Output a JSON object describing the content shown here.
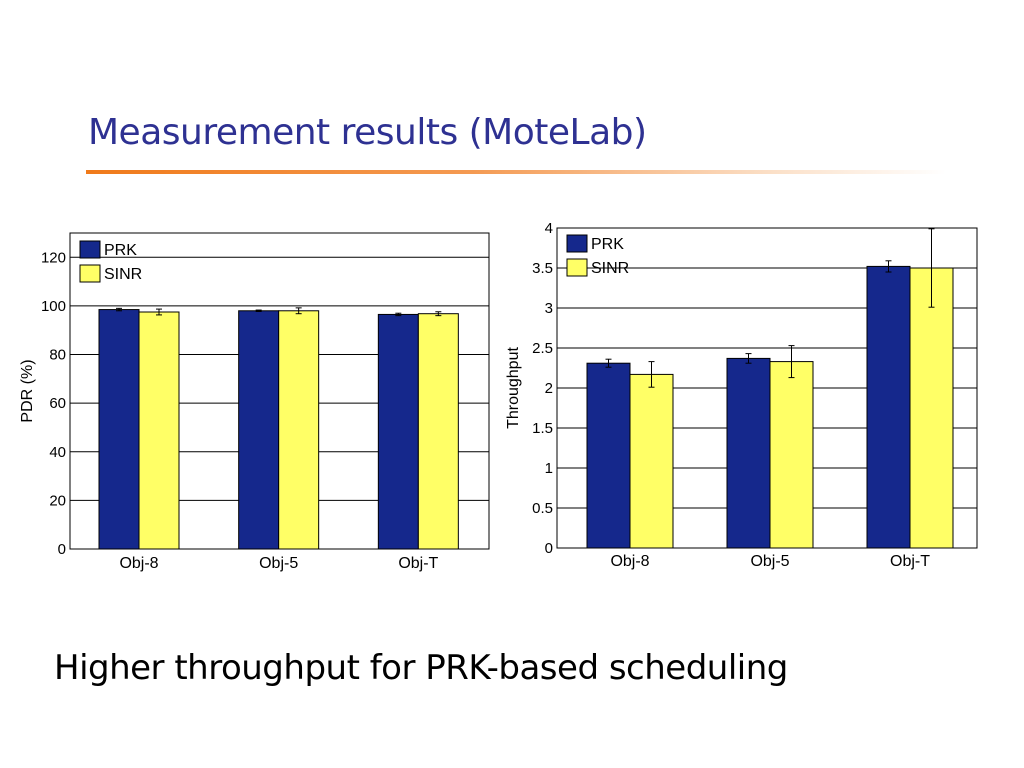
{
  "slide": {
    "title": "Measurement results (MoteLab)",
    "caption": "Higher throughput for PRK-based scheduling",
    "title_color": "#2e3192",
    "rule_color": "#f07a1a"
  },
  "chart_data": [
    {
      "type": "bar",
      "categories": [
        "Obj-8",
        "Obj-5",
        "Obj-T"
      ],
      "series": [
        {
          "name": "PRK",
          "color": "#15288c",
          "values": [
            98.5,
            98.0,
            96.5
          ],
          "errors": [
            0.5,
            0.3,
            0.5
          ]
        },
        {
          "name": "SINR",
          "color": "#ffff66",
          "values": [
            97.5,
            98.0,
            96.8
          ],
          "errors": [
            1.2,
            1.2,
            0.8
          ]
        }
      ],
      "title": "",
      "xlabel": "",
      "ylabel": "PDR (%)",
      "ylim": [
        0,
        130
      ],
      "yticks": [
        0,
        20,
        40,
        60,
        80,
        100,
        120
      ],
      "ytick_labels": [
        "0",
        "20",
        "40",
        "60",
        "80",
        "100",
        "120"
      ],
      "grid": true,
      "legend": "top-left"
    },
    {
      "type": "bar",
      "categories": [
        "Obj-8",
        "Obj-5",
        "Obj-T"
      ],
      "series": [
        {
          "name": "PRK",
          "color": "#15288c",
          "values": [
            2.31,
            2.37,
            3.52
          ],
          "errors": [
            0.05,
            0.06,
            0.07
          ]
        },
        {
          "name": "SINR",
          "color": "#ffff66",
          "values": [
            2.17,
            2.33,
            3.5
          ],
          "errors": [
            0.16,
            0.2,
            0.49
          ]
        }
      ],
      "title": "",
      "xlabel": "",
      "ylabel": "Throughput",
      "ylim": [
        0,
        4
      ],
      "yticks": [
        0,
        0.5,
        1,
        1.5,
        2,
        2.5,
        3,
        3.5,
        4
      ],
      "ytick_labels": [
        "0",
        "0.5",
        "1",
        "1.5",
        "2",
        "2.5",
        "3",
        "3.5",
        "4"
      ],
      "grid": true,
      "legend": "top-left"
    }
  ]
}
